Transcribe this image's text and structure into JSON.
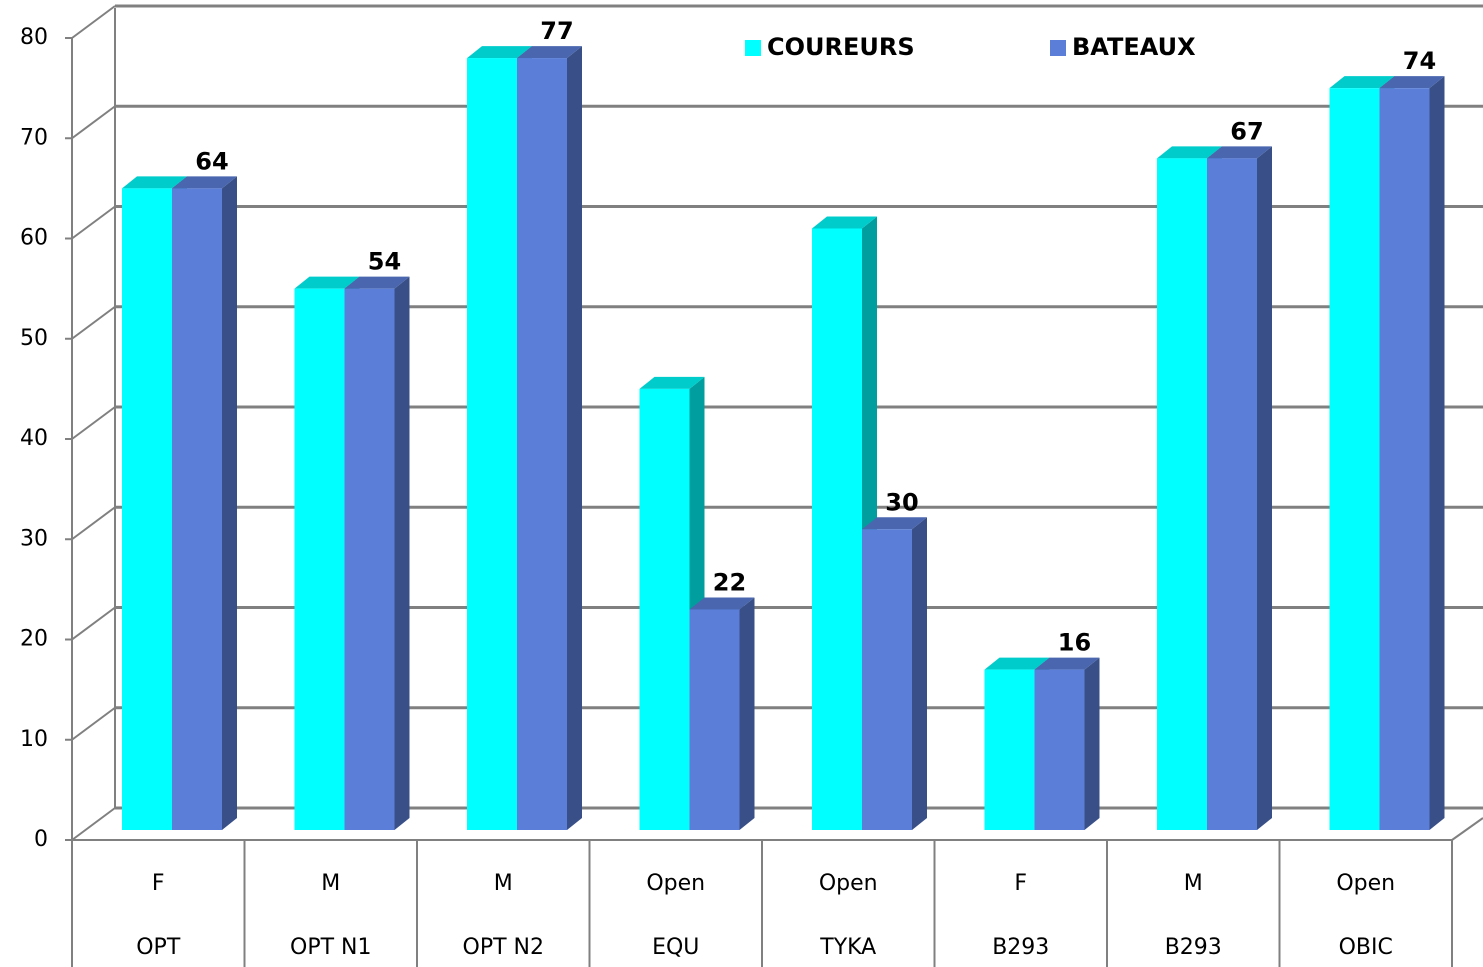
{
  "chart_data": {
    "type": "bar3d",
    "categories": [
      "F",
      "M",
      "M",
      "Open",
      "Open",
      "F",
      "M",
      "Open"
    ],
    "category_groups": [
      "OPT",
      "OPT N1",
      "OPT N2",
      "EQU",
      "TYKA",
      "B293",
      "B293",
      "OBIC"
    ],
    "series": [
      {
        "name": "COUREURS",
        "color": "#00ffff",
        "values": [
          64,
          54,
          77,
          44,
          60,
          16,
          67,
          74
        ],
        "data_labels": false
      },
      {
        "name": "BATEAUX",
        "color": "#5b7fd9",
        "values": [
          64,
          54,
          77,
          22,
          30,
          16,
          67,
          74
        ],
        "data_labels": true
      }
    ],
    "ylim": [
      0,
      80
    ],
    "yticks": [
      0,
      10,
      20,
      30,
      40,
      50,
      60,
      70,
      80
    ],
    "grid": true,
    "legend": "top"
  }
}
